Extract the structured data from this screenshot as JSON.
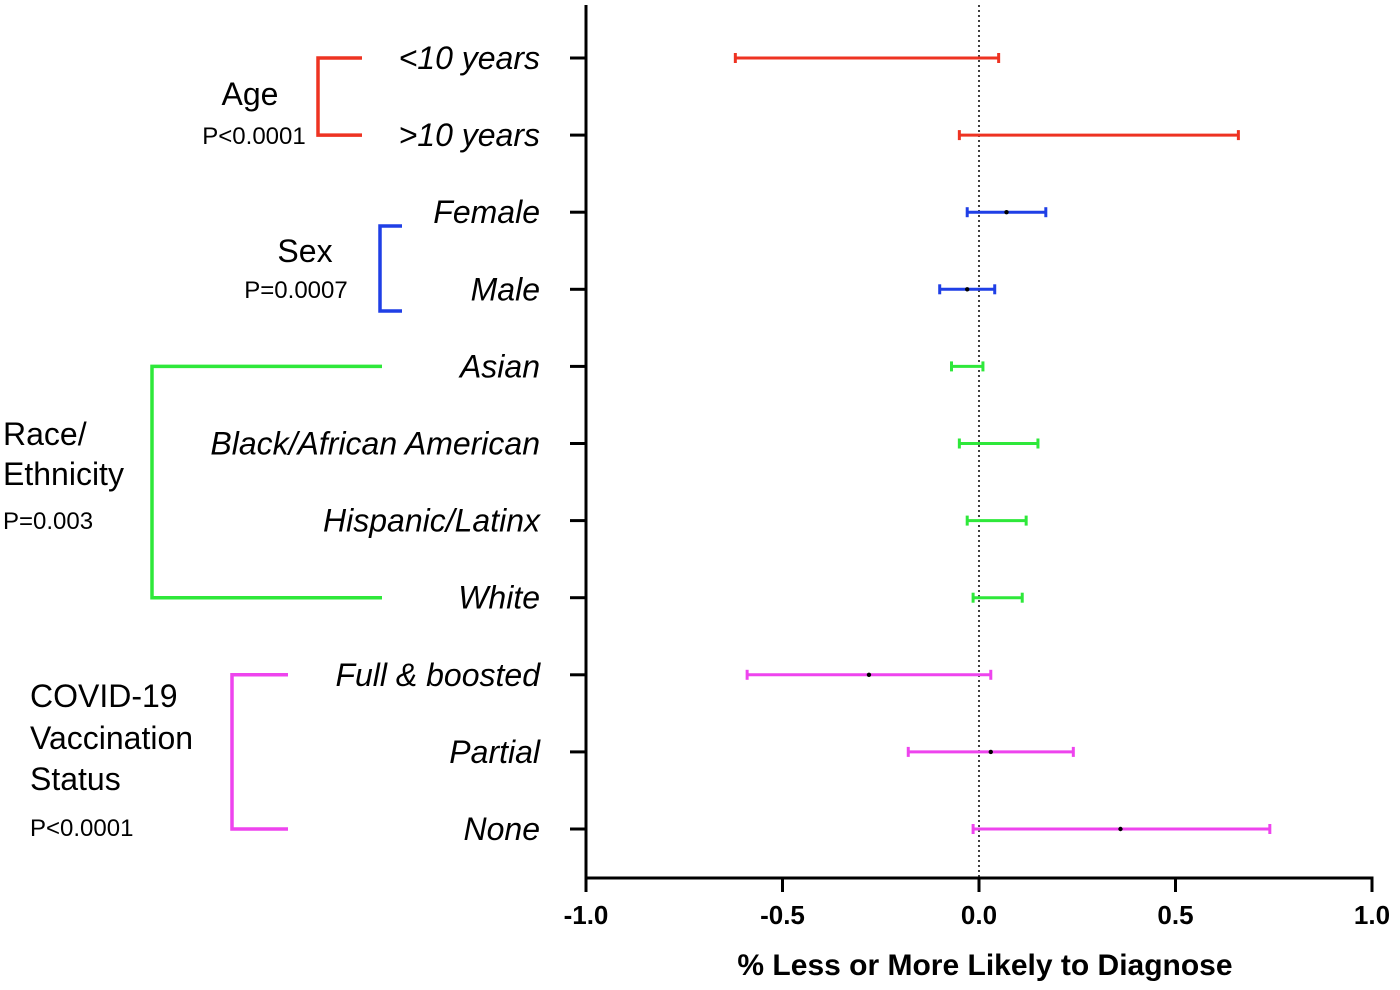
{
  "chart_data": {
    "type": "forest",
    "xlabel": "% Less or More Likely to Diagnose",
    "xlim": [
      -1.0,
      1.0
    ],
    "xticks": [
      -1.0,
      -0.5,
      0.0,
      0.5,
      1.0
    ],
    "xtick_labels": [
      "-1.0",
      "-0.5",
      "0.0",
      "0.5",
      "1.0"
    ],
    "reference_line": 0.0,
    "categories": [
      {
        "label": "<10 years",
        "group": 0,
        "low": -0.62,
        "high": 0.05,
        "point": null
      },
      {
        "label": ">10 years",
        "group": 0,
        "low": -0.05,
        "high": 0.66,
        "point": null
      },
      {
        "label": "Female",
        "group": 1,
        "low": -0.03,
        "high": 0.17,
        "point": 0.07
      },
      {
        "label": "Male",
        "group": 1,
        "low": -0.1,
        "high": 0.04,
        "point": -0.03
      },
      {
        "label": "Asian",
        "group": 2,
        "low": -0.07,
        "high": 0.01,
        "point": null
      },
      {
        "label": "Black/African American",
        "group": 2,
        "low": -0.05,
        "high": 0.15,
        "point": null
      },
      {
        "label": "Hispanic/Latinx",
        "group": 2,
        "low": -0.03,
        "high": 0.12,
        "point": null
      },
      {
        "label": "White",
        "group": 2,
        "low": -0.015,
        "high": 0.11,
        "point": null
      },
      {
        "label": "Full & boosted",
        "group": 3,
        "low": -0.59,
        "high": 0.03,
        "point": -0.28
      },
      {
        "label": "Partial",
        "group": 3,
        "low": -0.18,
        "high": 0.24,
        "point": 0.03
      },
      {
        "label": "None",
        "group": 3,
        "low": -0.015,
        "high": 0.74,
        "point": 0.36
      }
    ],
    "groups": [
      {
        "name_lines": [
          "Age"
        ],
        "pvalue": "P<0.0001",
        "color": "#ee3322"
      },
      {
        "name_lines": [
          "Sex"
        ],
        "pvalue": "P=0.0007",
        "color": "#1f3fe6"
      },
      {
        "name_lines": [
          "Race/",
          "Ethnicity"
        ],
        "pvalue": "P=0.003",
        "color": "#2ee83a"
      },
      {
        "name_lines": [
          "COVID-19",
          "Vaccination",
          "Status"
        ],
        "pvalue": "P<0.0001",
        "color": "#ee44ee"
      }
    ]
  }
}
